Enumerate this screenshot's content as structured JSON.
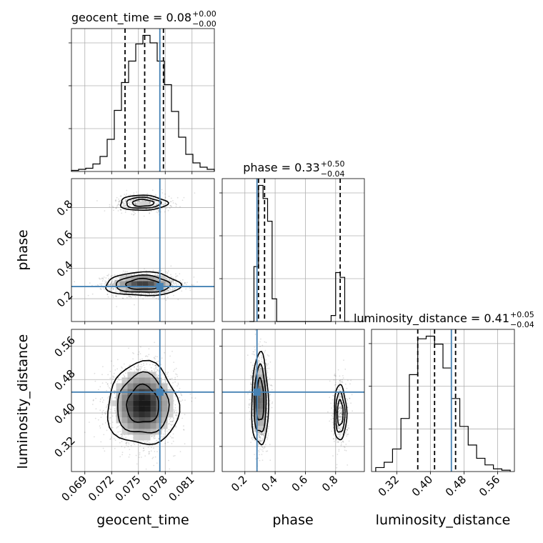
{
  "chart_data": {
    "type": "corner",
    "parameters": [
      "geocent_time",
      "phase",
      "luminosity_distance"
    ],
    "truth": {
      "geocent_time": 0.0774,
      "phase": 0.28,
      "luminosity_distance": 0.45
    },
    "truth_color": "#4682b4",
    "grid": true,
    "panels": {
      "geocent_time_hist": {
        "title": {
          "main": "geocent_time = 0.08",
          "plus": "+0.00",
          "minus": "−0.00"
        },
        "xlim": [
          0.0675,
          0.0835
        ],
        "quantiles": [
          0.0735,
          0.0757,
          0.0778
        ],
        "bin_edges": [
          0.0675,
          0.0683,
          0.0691,
          0.0699,
          0.0707,
          0.0715,
          0.0723,
          0.0731,
          0.0739,
          0.0747,
          0.0755,
          0.0763,
          0.0771,
          0.0779,
          0.0787,
          0.0795,
          0.0803,
          0.0811,
          0.0819,
          0.0827,
          0.0835
        ],
        "counts": [
          1,
          2,
          3,
          7,
          14,
          30,
          57,
          83,
          103,
          119,
          127,
          120,
          103,
          81,
          56,
          32,
          16,
          8,
          4,
          2
        ]
      },
      "phase_hist": {
        "title": {
          "main": "phase = 0.33",
          "plus": "+0.50",
          "minus": "−0.04"
        },
        "xlim": [
          0.05,
          0.99
        ],
        "quantiles": [
          0.29,
          0.33,
          0.83
        ],
        "bin_edges": [
          0.23,
          0.26,
          0.29,
          0.32,
          0.35,
          0.38,
          0.41,
          0.74,
          0.77,
          0.8,
          0.83,
          0.86,
          0.89
        ],
        "counts": [
          0,
          46,
          114,
          103,
          84,
          19,
          0,
          0,
          5,
          41,
          37,
          0
        ]
      },
      "luminosity_distance_hist": {
        "title": {
          "main": "luminosity_distance = 0.41",
          "plus": "+0.05",
          "minus": "−0.04"
        },
        "xlim": [
          0.26,
          0.6
        ],
        "quantiles": [
          0.37,
          0.41,
          0.46
        ],
        "bin_edges": [
          0.27,
          0.29,
          0.31,
          0.33,
          0.35,
          0.37,
          0.39,
          0.41,
          0.43,
          0.45,
          0.47,
          0.49,
          0.51,
          0.53,
          0.55,
          0.57,
          0.59
        ],
        "counts": [
          3,
          7,
          17,
          40,
          73,
          100,
          102,
          96,
          78,
          55,
          34,
          20,
          10,
          5,
          2,
          1
        ]
      }
    },
    "axes": {
      "geocent_time": {
        "label": "geocent_time",
        "ticks": [
          0.069,
          0.072,
          0.075,
          0.078,
          0.081
        ],
        "tick_labels": [
          "0.069",
          "0.072",
          "0.075",
          "0.078",
          "0.081"
        ]
      },
      "phase": {
        "label": "phase",
        "ticks": [
          0.2,
          0.4,
          0.6,
          0.8
        ],
        "tick_labels": [
          "0.2",
          "0.4",
          "0.6",
          "0.8"
        ]
      },
      "luminosity_distance": {
        "label": "luminosity_distance",
        "ticks": [
          0.32,
          0.4,
          0.48,
          0.56
        ],
        "tick_labels": [
          "0.32",
          "0.40",
          "0.48",
          "0.56"
        ]
      },
      "phase_y": {
        "ylim": [
          0.05,
          0.99
        ]
      },
      "luminosity_distance_y": {
        "ylim": [
          0.26,
          0.6
        ]
      }
    },
    "clusters": [
      {
        "panel": "phase_vs_geocent_time",
        "x": 0.0755,
        "y": 0.295,
        "sx": 0.0019,
        "sy": 0.035,
        "weight": 0.8
      },
      {
        "panel": "phase_vs_geocent_time",
        "x": 0.0755,
        "y": 0.83,
        "sx": 0.0016,
        "sy": 0.03,
        "weight": 0.2
      },
      {
        "panel": "luminosity_distance_vs_geocent_time",
        "x": 0.0755,
        "y": 0.42,
        "sx": 0.0018,
        "sy": 0.045,
        "weight": 1.0
      },
      {
        "panel": "luminosity_distance_vs_phase",
        "x": 0.3,
        "y": 0.43,
        "sx": 0.025,
        "sy": 0.05,
        "weight": 0.8
      },
      {
        "panel": "luminosity_distance_vs_phase",
        "x": 0.83,
        "y": 0.4,
        "sx": 0.025,
        "sy": 0.04,
        "weight": 0.2
      }
    ]
  }
}
